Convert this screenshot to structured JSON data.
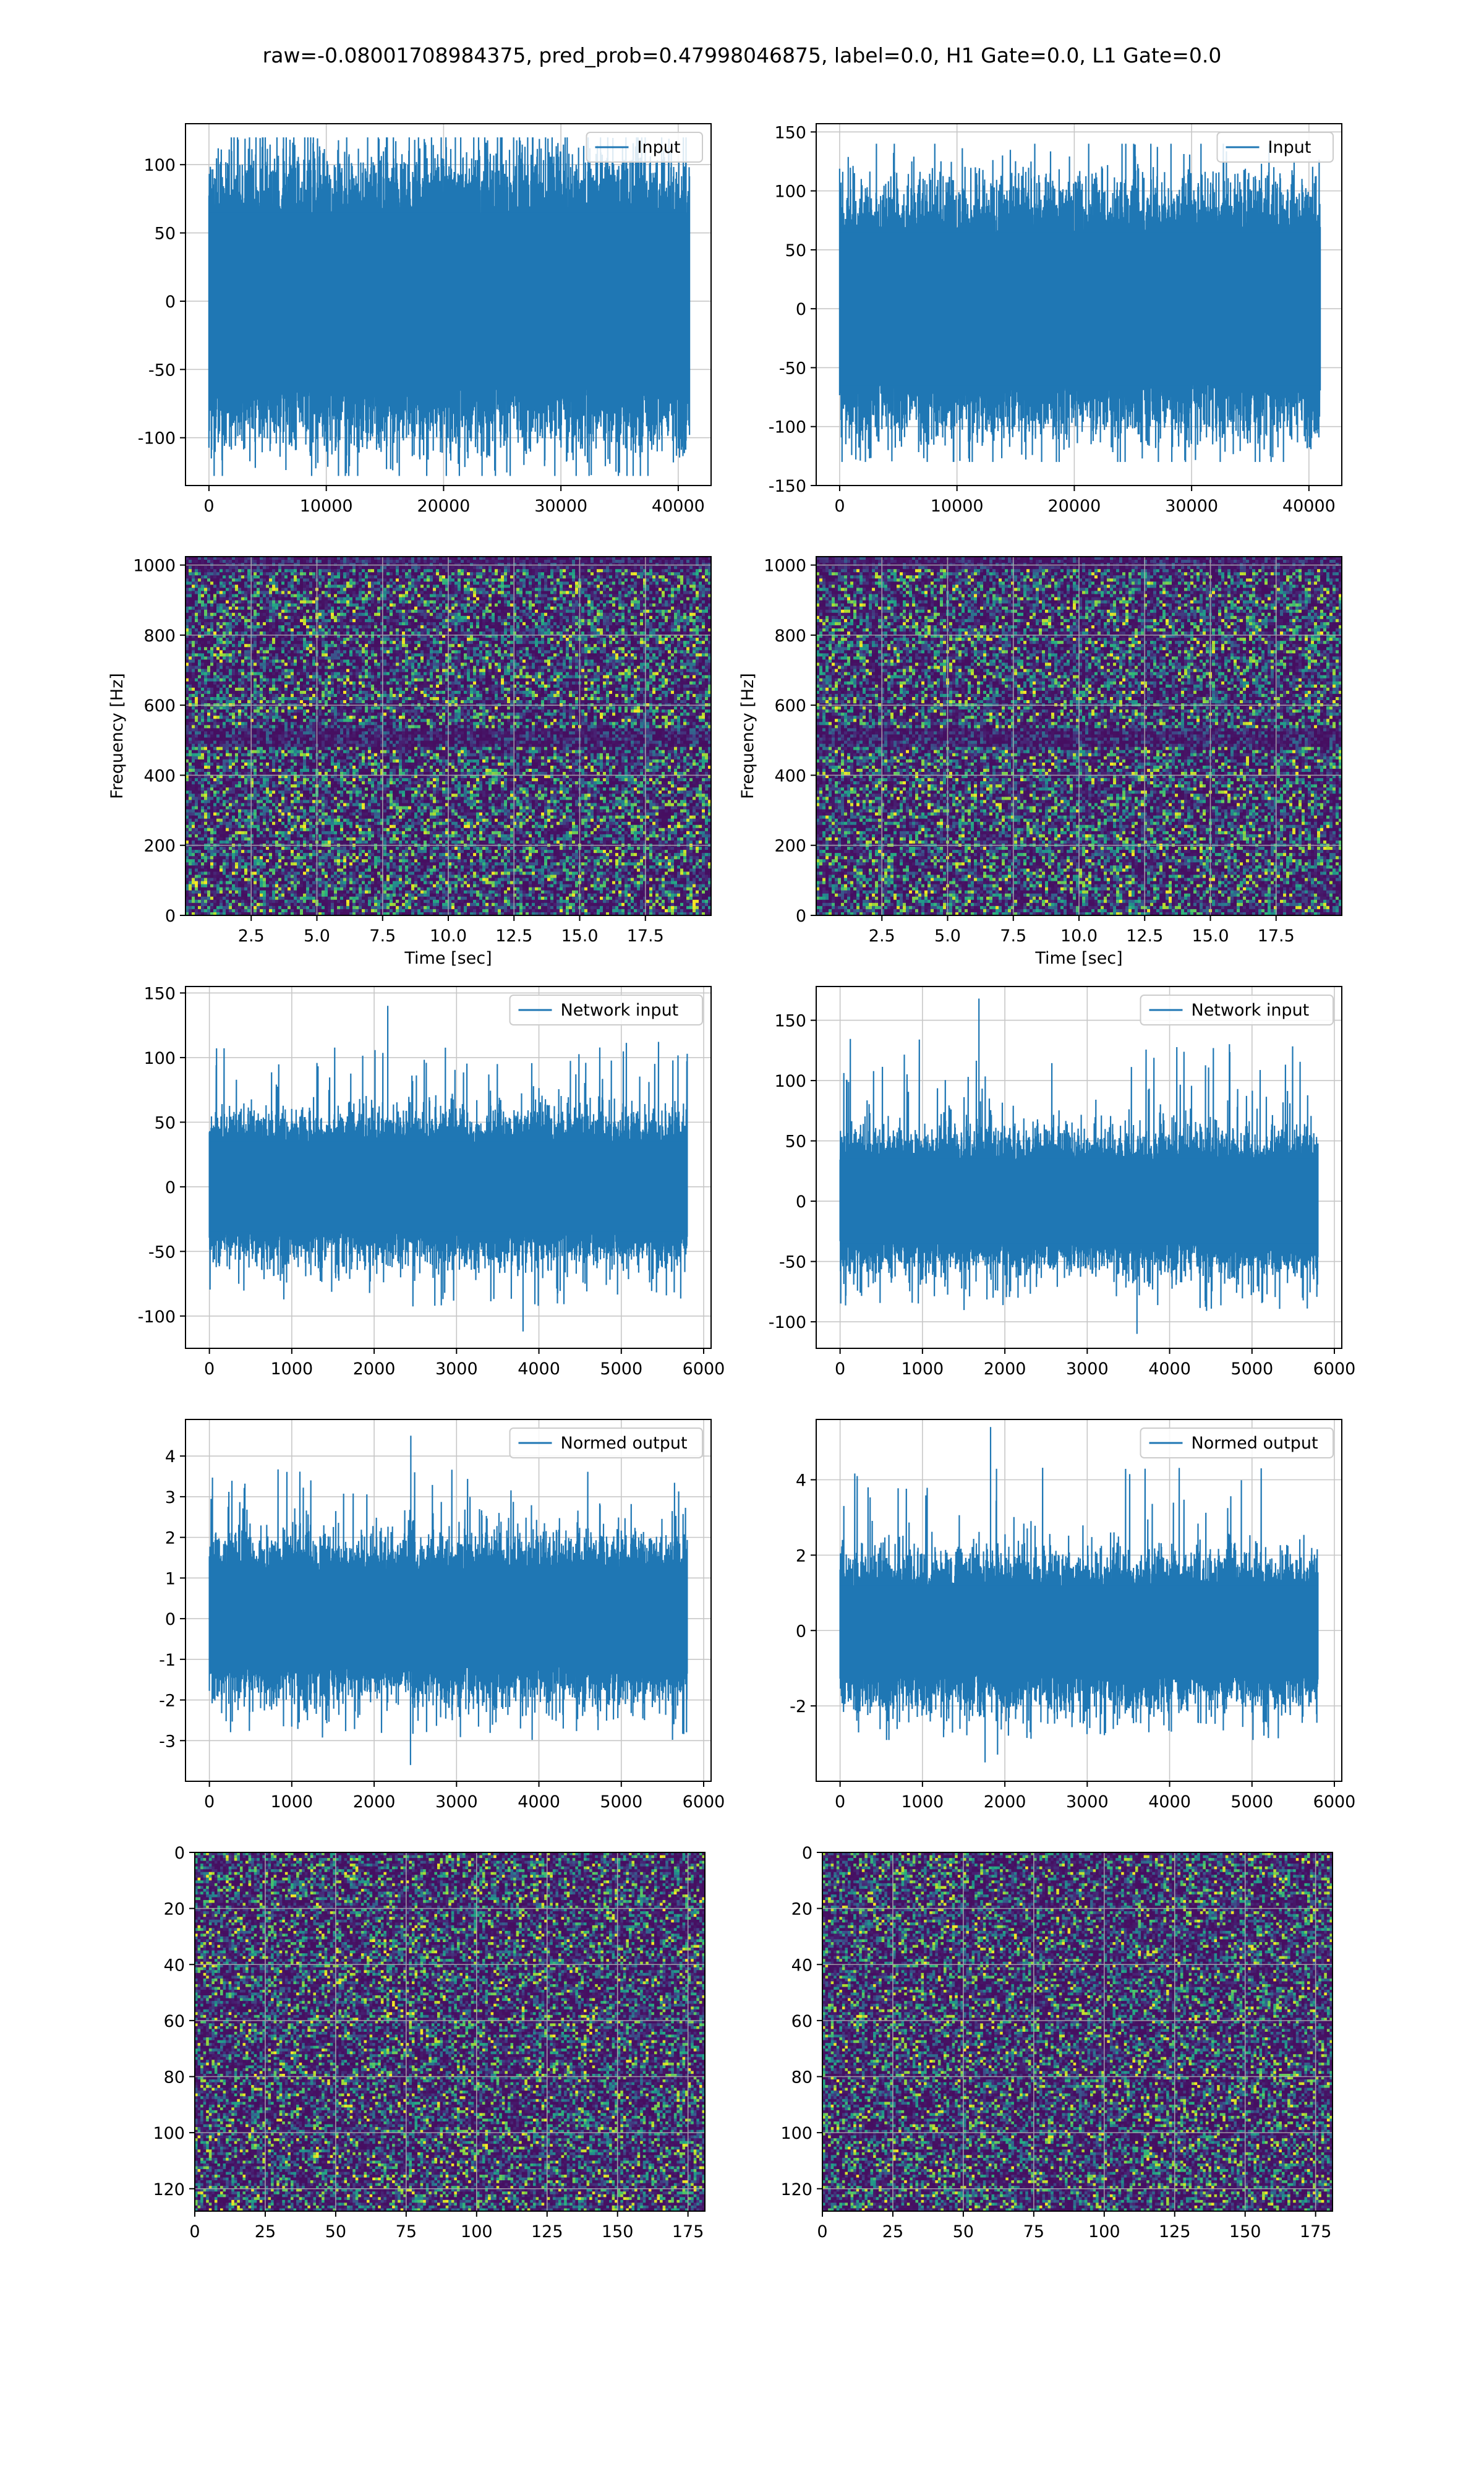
{
  "suptitle": "raw=-0.08001708984375, pred_prob=0.47998046875, label=0.0, H1 Gate=0.0, L1 Gate=0.0",
  "colors": {
    "line": "#1f77b4",
    "grid": "#b0b0b0",
    "spine": "#000000"
  },
  "chart_data": [
    {
      "id": "h1-input",
      "type": "line",
      "legend": "Input",
      "xlim": [
        -2000,
        42800
      ],
      "ylim": [
        -135,
        130
      ],
      "xticks": [
        0,
        10000,
        20000,
        30000,
        40000
      ],
      "yticks": [
        -100,
        -50,
        0,
        50,
        100
      ],
      "n_samples": 40960,
      "amplitude_core": [
        -65,
        65
      ],
      "amplitude_extremes": [
        -128,
        120
      ],
      "grid": true,
      "legend_loc": "upper right"
    },
    {
      "id": "l1-input",
      "type": "line",
      "legend": "Input",
      "xlim": [
        -2000,
        42800
      ],
      "ylim": [
        -150,
        157
      ],
      "xticks": [
        0,
        10000,
        20000,
        30000,
        40000
      ],
      "yticks": [
        -150,
        -100,
        -50,
        0,
        50,
        100,
        150
      ],
      "n_samples": 40960,
      "amplitude_core": [
        -65,
        65
      ],
      "amplitude_extremes": [
        -130,
        140
      ],
      "grid": true,
      "legend_loc": "upper right"
    },
    {
      "id": "h1-spectrogram",
      "type": "heatmap",
      "xlabel": "Time [sec]",
      "ylabel": "Frequency [Hz]",
      "xlim": [
        0,
        20
      ],
      "ylim": [
        0,
        1024
      ],
      "xticks": [
        2.5,
        5.0,
        7.5,
        10.0,
        12.5,
        15.0,
        17.5
      ],
      "yticks": [
        0,
        200,
        400,
        600,
        800,
        1000
      ],
      "colormap": "viridis",
      "grid": true
    },
    {
      "id": "l1-spectrogram",
      "type": "heatmap",
      "xlabel": "Time [sec]",
      "ylabel": "Frequency [Hz]",
      "xlim": [
        0,
        20
      ],
      "ylim": [
        0,
        1024
      ],
      "xticks": [
        2.5,
        5.0,
        7.5,
        10.0,
        12.5,
        15.0,
        17.5
      ],
      "yticks": [
        0,
        200,
        400,
        600,
        800,
        1000
      ],
      "colormap": "viridis",
      "grid": true
    },
    {
      "id": "h1-network-input",
      "type": "line",
      "legend": "Network input",
      "xlim": [
        -290,
        6090
      ],
      "ylim": [
        -125,
        155
      ],
      "xticks": [
        0,
        1000,
        2000,
        3000,
        4000,
        5000,
        6000
      ],
      "yticks": [
        -100,
        -50,
        0,
        50,
        100,
        150
      ],
      "n_samples": 5800,
      "amplitude_core": [
        -35,
        35
      ],
      "amplitude_extremes": [
        -112,
        140
      ],
      "grid": true,
      "legend_loc": "upper right"
    },
    {
      "id": "l1-network-input",
      "type": "line",
      "legend": "Network input",
      "xlim": [
        -290,
        6090
      ],
      "ylim": [
        -122,
        178
      ],
      "xticks": [
        0,
        1000,
        2000,
        3000,
        4000,
        5000,
        6000
      ],
      "yticks": [
        -100,
        -50,
        0,
        50,
        100,
        150
      ],
      "n_samples": 5800,
      "amplitude_core": [
        -35,
        35
      ],
      "amplitude_extremes": [
        -110,
        168
      ],
      "grid": true,
      "legend_loc": "upper right"
    },
    {
      "id": "h1-normed-output",
      "type": "line",
      "legend": "Normed output",
      "xlim": [
        -290,
        6090
      ],
      "ylim": [
        -4.0,
        4.9
      ],
      "xticks": [
        0,
        1000,
        2000,
        3000,
        4000,
        5000,
        6000
      ],
      "yticks": [
        -3,
        -2,
        -1,
        0,
        1,
        2,
        3,
        4
      ],
      "n_samples": 5800,
      "amplitude_core": [
        -1.2,
        1.2
      ],
      "amplitude_extremes": [
        -3.6,
        4.5
      ],
      "grid": true,
      "legend_loc": "upper right"
    },
    {
      "id": "l1-normed-output",
      "type": "line",
      "legend": "Normed output",
      "xlim": [
        -290,
        6090
      ],
      "ylim": [
        -4.0,
        5.6
      ],
      "xticks": [
        0,
        1000,
        2000,
        3000,
        4000,
        5000,
        6000
      ],
      "yticks": [
        -2,
        0,
        2,
        4
      ],
      "n_samples": 5800,
      "amplitude_core": [
        -1.2,
        1.2
      ],
      "amplitude_extremes": [
        -3.5,
        5.4
      ],
      "grid": true,
      "legend_loc": "upper right"
    },
    {
      "id": "h1-output-image",
      "type": "heatmap",
      "xlim": [
        0,
        181
      ],
      "ylim": [
        128,
        0
      ],
      "xticks": [
        0,
        25,
        50,
        75,
        100,
        125,
        150,
        175
      ],
      "yticks": [
        0,
        20,
        40,
        60,
        80,
        100,
        120
      ],
      "colormap": "viridis",
      "grid": true
    },
    {
      "id": "l1-output-image",
      "type": "heatmap",
      "xlim": [
        0,
        181
      ],
      "ylim": [
        128,
        0
      ],
      "xticks": [
        0,
        25,
        50,
        75,
        100,
        125,
        150,
        175
      ],
      "yticks": [
        0,
        20,
        40,
        60,
        80,
        100,
        120
      ],
      "colormap": "viridis",
      "grid": true
    }
  ]
}
